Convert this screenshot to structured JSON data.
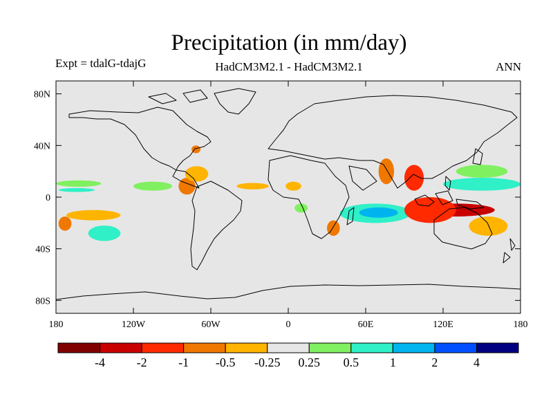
{
  "chart_data": {
    "type": "filled-contour-map",
    "title": "Precipitation (in mm/day)",
    "left_label": "Expt = tdalG-tdajG",
    "center_label": "HadCM3M2.1 - HadCM3M2.1",
    "right_label": "ANN",
    "x_range": [
      -180,
      180
    ],
    "y_range": [
      -90,
      90
    ],
    "x_ticks": [
      {
        "value": -180,
        "label": "180"
      },
      {
        "value": -120,
        "label": "120W"
      },
      {
        "value": -60,
        "label": "60W"
      },
      {
        "value": 0,
        "label": "0"
      },
      {
        "value": 60,
        "label": "60E"
      },
      {
        "value": 120,
        "label": "120E"
      },
      {
        "value": 180,
        "label": "180"
      }
    ],
    "y_ticks": [
      {
        "value": 80,
        "label": "80N"
      },
      {
        "value": 40,
        "label": "40N"
      },
      {
        "value": 0,
        "label": "0"
      },
      {
        "value": -40,
        "label": "40S"
      },
      {
        "value": -80,
        "label": "80S"
      }
    ],
    "colorbar": {
      "colors": [
        "#800000",
        "#c80000",
        "#ff2a00",
        "#f07800",
        "#ffb400",
        "#e6e6e6",
        "#80f060",
        "#30f0c8",
        "#00b4f0",
        "#0050ff",
        "#000080"
      ],
      "levels": [
        "-4",
        "-2",
        "-1",
        "-0.5",
        "-0.25",
        "0.25",
        "0.5",
        "1",
        "2",
        "4"
      ]
    },
    "anomaly_regions": [
      {
        "lon": [
          -180,
          -145
        ],
        "lat": [
          8,
          13
        ],
        "color": "#80f060"
      },
      {
        "lon": [
          -178,
          -150
        ],
        "lat": [
          4,
          7
        ],
        "color": "#30f0c8"
      },
      {
        "lon": [
          -172,
          -130
        ],
        "lat": [
          -10,
          -18
        ],
        "color": "#ffb400"
      },
      {
        "lon": [
          -178,
          -168
        ],
        "lat": [
          -15,
          -26
        ],
        "color": "#f07800"
      },
      {
        "lon": [
          -155,
          -130
        ],
        "lat": [
          -22,
          -34
        ],
        "color": "#30f0c8"
      },
      {
        "lon": [
          -120,
          -90
        ],
        "lat": [
          5,
          12
        ],
        "color": "#80f060"
      },
      {
        "lon": [
          -85,
          -72
        ],
        "lat": [
          2,
          15
        ],
        "color": "#f07800"
      },
      {
        "lon": [
          -80,
          -62
        ],
        "lat": [
          12,
          24
        ],
        "color": "#ffb400"
      },
      {
        "lon": [
          -75,
          -68
        ],
        "lat": [
          34,
          40
        ],
        "color": "#f07800"
      },
      {
        "lon": [
          -40,
          -15
        ],
        "lat": [
          6,
          11
        ],
        "color": "#ffb400"
      },
      {
        "lon": [
          -2,
          10
        ],
        "lat": [
          5,
          12
        ],
        "color": "#ffb400"
      },
      {
        "lon": [
          5,
          15
        ],
        "lat": [
          -5,
          -12
        ],
        "color": "#80f060"
      },
      {
        "lon": [
          30,
          40
        ],
        "lat": [
          -18,
          -30
        ],
        "color": "#f07800"
      },
      {
        "lon": [
          40,
          95
        ],
        "lat": [
          -5,
          -20
        ],
        "color": "#30f0c8"
      },
      {
        "lon": [
          55,
          85
        ],
        "lat": [
          -8,
          -16
        ],
        "color": "#00b4f0"
      },
      {
        "lon": [
          70,
          82
        ],
        "lat": [
          10,
          30
        ],
        "color": "#f07800"
      },
      {
        "lon": [
          90,
          105
        ],
        "lat": [
          5,
          25
        ],
        "color": "#ff2a00"
      },
      {
        "lon": [
          100,
          160
        ],
        "lat": [
          -5,
          -15
        ],
        "color": "#c80000"
      },
      {
        "lon": [
          90,
          130
        ],
        "lat": [
          0,
          -20
        ],
        "color": "#ff2a00"
      },
      {
        "lon": [
          140,
          170
        ],
        "lat": [
          -15,
          -30
        ],
        "color": "#ffb400"
      },
      {
        "lon": [
          120,
          180
        ],
        "lat": [
          5,
          15
        ],
        "color": "#30f0c8"
      },
      {
        "lon": [
          130,
          170
        ],
        "lat": [
          15,
          25
        ],
        "color": "#80f060"
      }
    ]
  }
}
